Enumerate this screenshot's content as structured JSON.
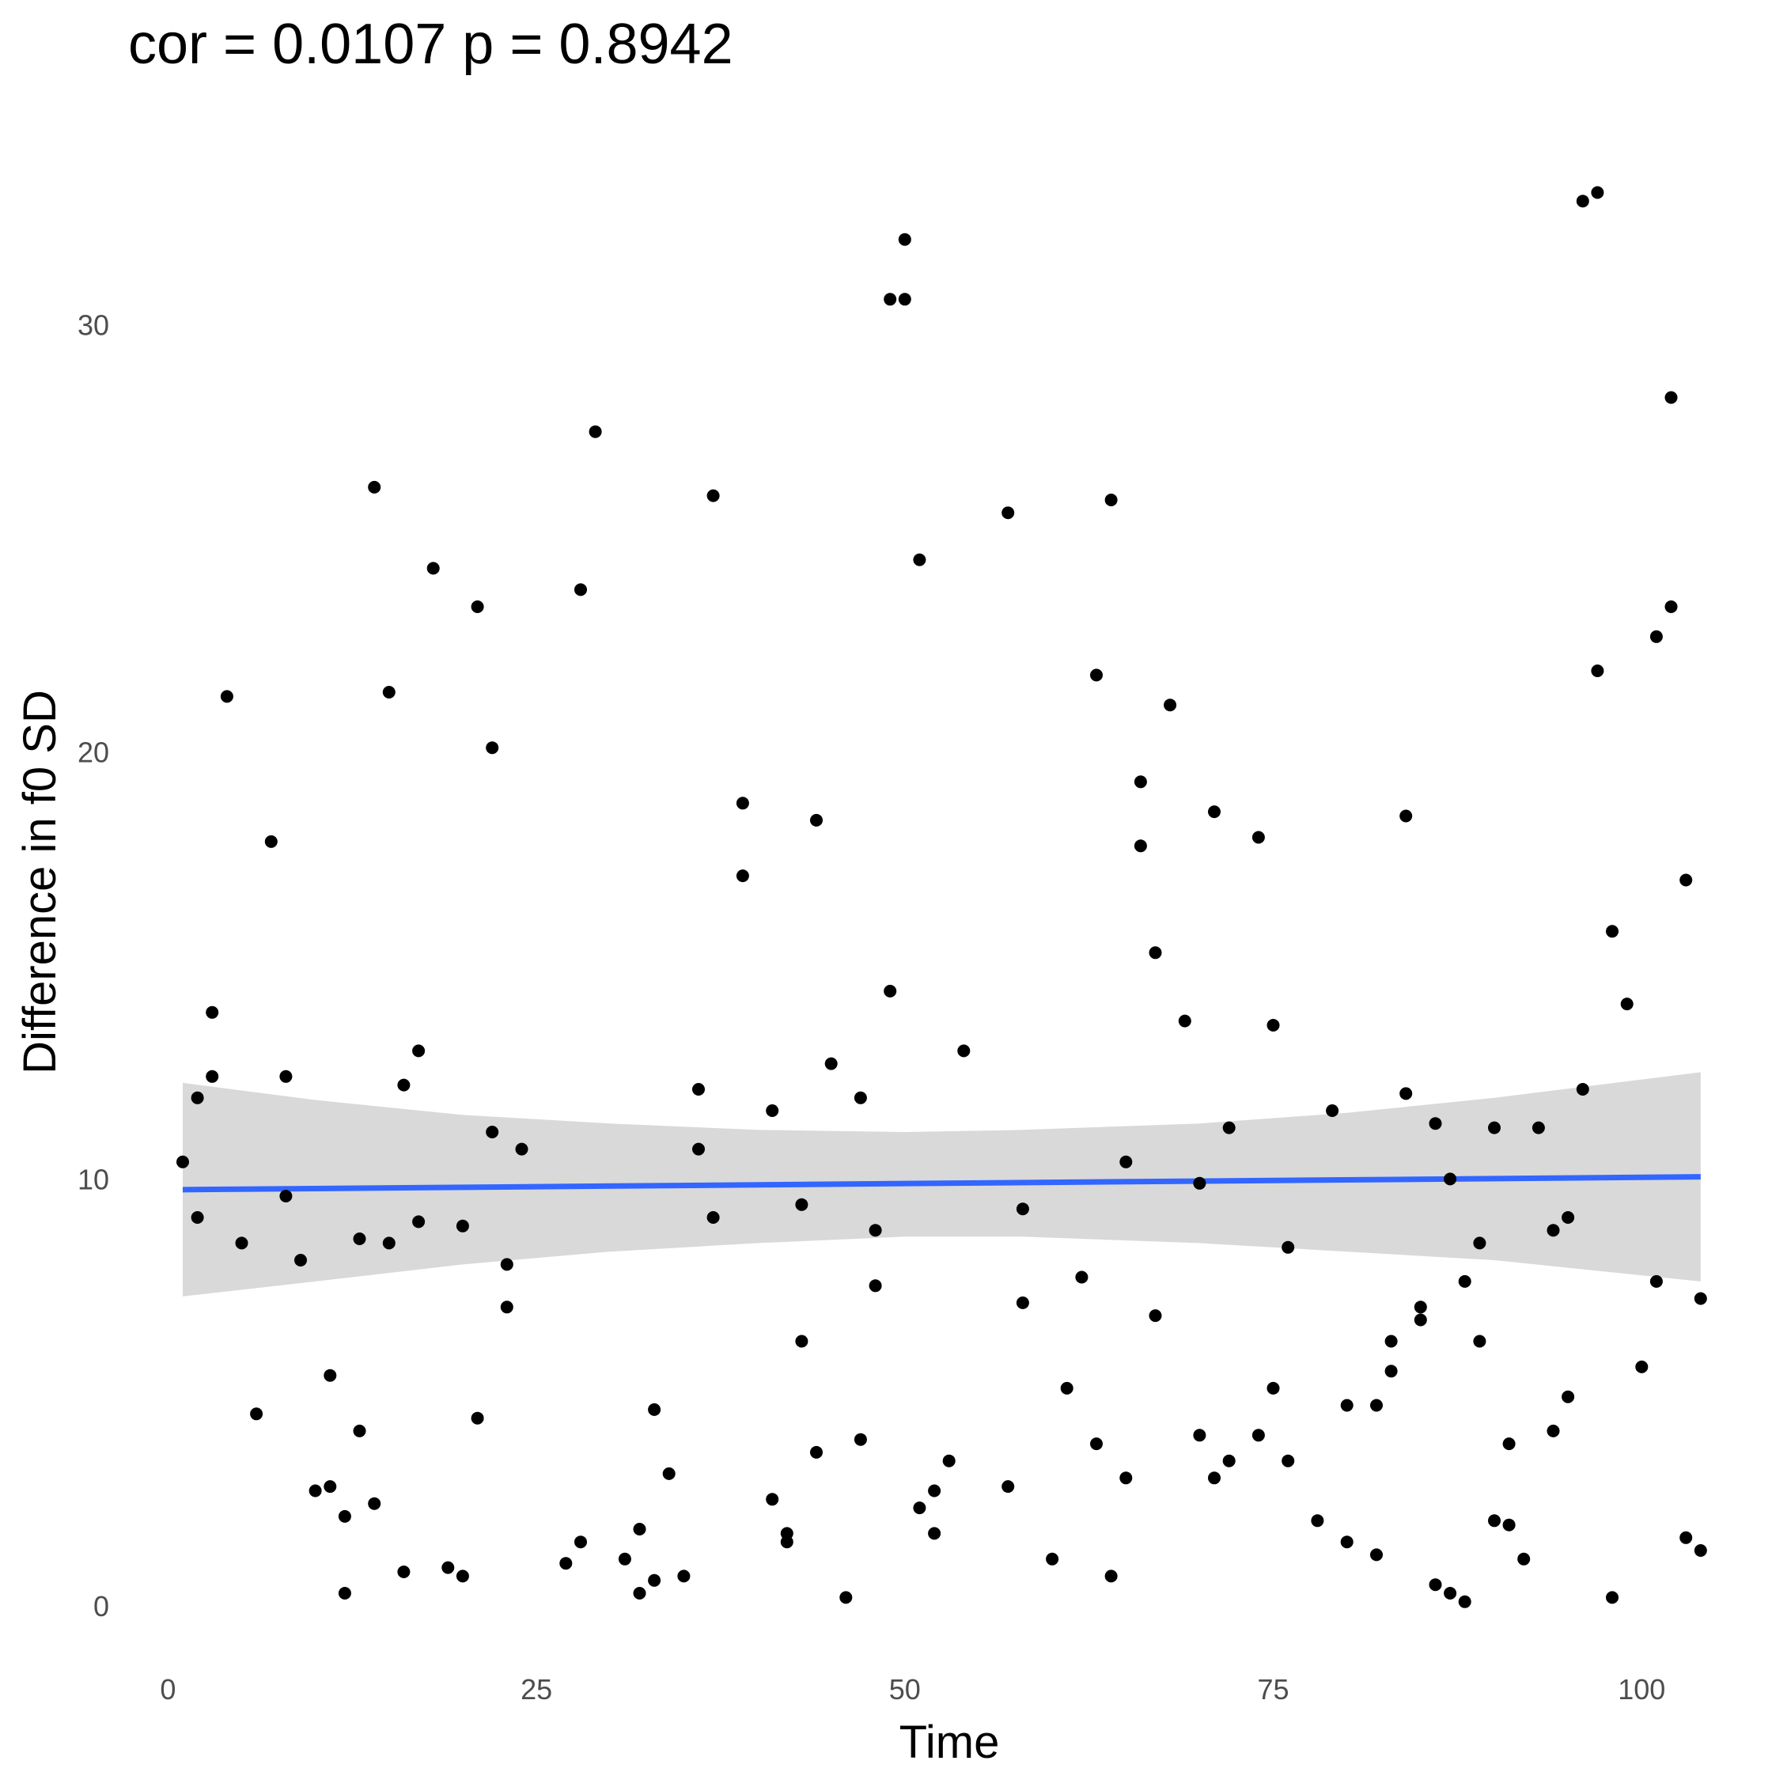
{
  "chart_data": {
    "type": "scatter",
    "title": "cor = 0.0107 p = 0.8942",
    "xlabel": "Time",
    "ylabel": "Difference in f0 SD",
    "xlim": [
      -1.2,
      107.5
    ],
    "ylim": [
      -1.2,
      35.2
    ],
    "x_ticks": [
      0,
      25,
      50,
      75,
      100
    ],
    "x_tick_labels": [
      "0",
      "25",
      "50",
      "75",
      "100"
    ],
    "y_ticks": [
      0,
      10,
      20,
      30
    ],
    "y_tick_labels": [
      "0",
      "10",
      "20",
      "30"
    ],
    "grid": false,
    "legend": "none",
    "colors": {
      "points": "#000000",
      "trend_line": "#3366ff",
      "confidence_band": "#d9d9d9",
      "tick_text": "#4d4d4d",
      "text": "#000000"
    },
    "points": [
      [
        1,
        10.4
      ],
      [
        2,
        11.9
      ],
      [
        2,
        9.1
      ],
      [
        3,
        13.9
      ],
      [
        3,
        12.4
      ],
      [
        4,
        21.3
      ],
      [
        5,
        8.5
      ],
      [
        6,
        4.5
      ],
      [
        7,
        17.9
      ],
      [
        8,
        12.4
      ],
      [
        8,
        9.6
      ],
      [
        9,
        8.1
      ],
      [
        10,
        2.7
      ],
      [
        11,
        2.8
      ],
      [
        11,
        5.4
      ],
      [
        12,
        2.1
      ],
      [
        12,
        0.3
      ],
      [
        13,
        4.1
      ],
      [
        13,
        8.6
      ],
      [
        14,
        26.2
      ],
      [
        14,
        2.4
      ],
      [
        15,
        21.4
      ],
      [
        15,
        8.5
      ],
      [
        16,
        12.2
      ],
      [
        16,
        0.8
      ],
      [
        17,
        13.0
      ],
      [
        17,
        9.0
      ],
      [
        18,
        24.3
      ],
      [
        19,
        0.9
      ],
      [
        20,
        8.9
      ],
      [
        20,
        0.7
      ],
      [
        21,
        23.4
      ],
      [
        21,
        4.4
      ],
      [
        22,
        20.1
      ],
      [
        22,
        11.1
      ],
      [
        23,
        8.0
      ],
      [
        23,
        7.0
      ],
      [
        24,
        10.7
      ],
      [
        27,
        1.0
      ],
      [
        28,
        23.8
      ],
      [
        28,
        1.5
      ],
      [
        29,
        27.5
      ],
      [
        31,
        1.1
      ],
      [
        32,
        1.8
      ],
      [
        32,
        0.3
      ],
      [
        33,
        4.6
      ],
      [
        33,
        0.6
      ],
      [
        34,
        3.1
      ],
      [
        35,
        0.7
      ],
      [
        36,
        12.1
      ],
      [
        36,
        10.7
      ],
      [
        37,
        26.0
      ],
      [
        37,
        9.1
      ],
      [
        39,
        18.8
      ],
      [
        39,
        17.1
      ],
      [
        41,
        11.6
      ],
      [
        41,
        2.5
      ],
      [
        42,
        1.7
      ],
      [
        42,
        1.5
      ],
      [
        43,
        9.4
      ],
      [
        43,
        6.2
      ],
      [
        44,
        18.4
      ],
      [
        44,
        3.6
      ],
      [
        45,
        12.7
      ],
      [
        46,
        0.2
      ],
      [
        47,
        11.9
      ],
      [
        47,
        3.9
      ],
      [
        48,
        8.8
      ],
      [
        48,
        7.5
      ],
      [
        49,
        30.6
      ],
      [
        49,
        14.4
      ],
      [
        50,
        32.0
      ],
      [
        50,
        30.6
      ],
      [
        51,
        24.5
      ],
      [
        51,
        2.3
      ],
      [
        52,
        2.7
      ],
      [
        52,
        1.7
      ],
      [
        53,
        3.4
      ],
      [
        54,
        13.0
      ],
      [
        57,
        25.6
      ],
      [
        57,
        2.8
      ],
      [
        58,
        9.3
      ],
      [
        58,
        7.1
      ],
      [
        60,
        1.1
      ],
      [
        61,
        5.1
      ],
      [
        62,
        7.7
      ],
      [
        63,
        21.8
      ],
      [
        63,
        3.8
      ],
      [
        64,
        25.9
      ],
      [
        64,
        0.7
      ],
      [
        65,
        10.4
      ],
      [
        65,
        3.0
      ],
      [
        66,
        19.3
      ],
      [
        66,
        17.8
      ],
      [
        67,
        15.3
      ],
      [
        67,
        6.8
      ],
      [
        68,
        21.1
      ],
      [
        69,
        13.7
      ],
      [
        70,
        9.9
      ],
      [
        70,
        4.0
      ],
      [
        71,
        18.6
      ],
      [
        71,
        3.0
      ],
      [
        72,
        11.2
      ],
      [
        72,
        3.4
      ],
      [
        74,
        18.0
      ],
      [
        74,
        4.0
      ],
      [
        75,
        13.6
      ],
      [
        75,
        5.1
      ],
      [
        76,
        8.4
      ],
      [
        76,
        3.4
      ],
      [
        78,
        2.0
      ],
      [
        79,
        11.6
      ],
      [
        80,
        4.7
      ],
      [
        80,
        1.5
      ],
      [
        82,
        4.7
      ],
      [
        82,
        1.2
      ],
      [
        83,
        6.2
      ],
      [
        83,
        5.5
      ],
      [
        84,
        18.5
      ],
      [
        84,
        12.0
      ],
      [
        85,
        7.0
      ],
      [
        85,
        6.7
      ],
      [
        86,
        11.3
      ],
      [
        86,
        0.5
      ],
      [
        87,
        10.0
      ],
      [
        87,
        0.3
      ],
      [
        88,
        7.6
      ],
      [
        88,
        0.1
      ],
      [
        89,
        8.5
      ],
      [
        89,
        6.2
      ],
      [
        90,
        11.2
      ],
      [
        90,
        2.0
      ],
      [
        91,
        3.8
      ],
      [
        91,
        1.9
      ],
      [
        92,
        1.1
      ],
      [
        93,
        11.2
      ],
      [
        94,
        8.8
      ],
      [
        94,
        4.1
      ],
      [
        95,
        9.1
      ],
      [
        95,
        4.9
      ],
      [
        96,
        32.9
      ],
      [
        96,
        12.1
      ],
      [
        97,
        33.1
      ],
      [
        97,
        21.9
      ],
      [
        98,
        15.8
      ],
      [
        98,
        0.2
      ],
      [
        99,
        14.1
      ],
      [
        100,
        5.6
      ],
      [
        101,
        22.7
      ],
      [
        101,
        7.6
      ],
      [
        102,
        28.3
      ],
      [
        102,
        23.4
      ],
      [
        103,
        17.0
      ],
      [
        103,
        1.6
      ],
      [
        104,
        7.2
      ],
      [
        104,
        1.3
      ]
    ],
    "trend_line": {
      "x_start": 1,
      "y_start": 9.75,
      "x_end": 104,
      "y_end": 10.05
    },
    "confidence_band": {
      "x": [
        1,
        10,
        20,
        30,
        40,
        50,
        58,
        70,
        80,
        90,
        104
      ],
      "upper": [
        12.25,
        11.85,
        11.5,
        11.3,
        11.15,
        11.1,
        11.15,
        11.3,
        11.55,
        11.9,
        12.5
      ],
      "lower": [
        7.25,
        7.6,
        8.0,
        8.3,
        8.5,
        8.65,
        8.65,
        8.5,
        8.3,
        8.1,
        7.6
      ]
    }
  }
}
